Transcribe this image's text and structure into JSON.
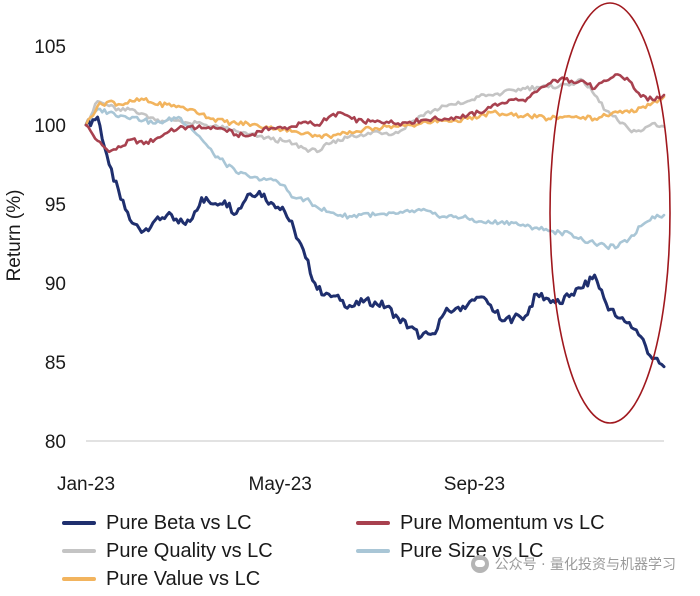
{
  "chart_data": {
    "type": "line",
    "title": "",
    "xlabel": "",
    "ylabel": "Return (%)",
    "ylim": [
      80,
      105
    ],
    "yticks": [
      80,
      85,
      90,
      95,
      100,
      105
    ],
    "x_range": [
      0,
      250
    ],
    "xticks": [
      {
        "label": "Jan-23",
        "x": 0
      },
      {
        "label": "May-23",
        "x": 84
      },
      {
        "label": "Sep-23",
        "x": 168
      }
    ],
    "x": [
      0,
      5,
      10,
      15,
      20,
      25,
      30,
      35,
      40,
      45,
      50,
      55,
      60,
      65,
      70,
      75,
      80,
      85,
      90,
      95,
      100,
      105,
      110,
      115,
      120,
      125,
      130,
      135,
      140,
      145,
      150,
      155,
      160,
      165,
      170,
      175,
      180,
      185,
      190,
      195,
      200,
      205,
      210,
      215,
      220,
      225,
      230,
      235,
      240,
      245,
      250
    ],
    "series": [
      {
        "name": "Pure Beta vs LC",
        "color": "#1f2f6e",
        "values": [
          100,
          100.5,
          97.5,
          95.3,
          93.8,
          93.3,
          94,
          94.3,
          93.8,
          93.9,
          95.4,
          95,
          95.2,
          94.4,
          95.6,
          95.8,
          95.1,
          94.8,
          93.4,
          91.6,
          89.6,
          89.3,
          88.9,
          88.5,
          88.8,
          88.8,
          88.5,
          87.8,
          87.2,
          86.6,
          86.8,
          88.1,
          88.4,
          88.6,
          89.1,
          88.6,
          87.6,
          87.8,
          87.9,
          89.3,
          89,
          88.7,
          89.3,
          89.7,
          90.5,
          88.7,
          87.8,
          87.5,
          86.6,
          85.2,
          84.7
        ]
      },
      {
        "name": "Pure Momentum vs LC",
        "color": "#a8414f",
        "values": [
          100,
          99,
          98.3,
          98.6,
          99.1,
          98.8,
          99.1,
          99.5,
          99.8,
          99.9,
          99.8,
          99.9,
          99.7,
          99.4,
          99.3,
          99.6,
          99.8,
          99.8,
          99.9,
          100.2,
          100,
          100.5,
          100.8,
          100.4,
          100.2,
          100.2,
          100.2,
          100.1,
          100.2,
          100.3,
          100.4,
          100.4,
          100.5,
          100.6,
          100.8,
          101.1,
          101.4,
          101.6,
          101.5,
          102.1,
          102.6,
          102.9,
          102.8,
          102.8,
          102.3,
          102.8,
          103.2,
          102.8,
          101.8,
          101.6,
          101.9
        ]
      },
      {
        "name": "Pure Quality vs LC",
        "color": "#c4c4c4",
        "values": [
          100,
          101.5,
          101.2,
          100.9,
          101,
          100.7,
          100.3,
          100.3,
          100.3,
          100.1,
          100.1,
          99.9,
          99.8,
          99.6,
          99.4,
          99.3,
          99.1,
          99,
          98.8,
          98.5,
          98.3,
          98.8,
          99,
          99.4,
          99.3,
          99.6,
          99.5,
          99.5,
          100.1,
          100.6,
          100.9,
          101.2,
          101.3,
          101.5,
          101.8,
          101.9,
          102,
          102.2,
          102.3,
          102.4,
          102.4,
          102.5,
          102.6,
          102.8,
          101.9,
          100.9,
          100.3,
          99.7,
          99.6,
          100.1,
          99.9
        ]
      },
      {
        "name": "Pure Size vs LC",
        "color": "#a9c6d6",
        "values": [
          100,
          101,
          100.8,
          100.6,
          100.5,
          100.3,
          100.1,
          100.3,
          100.5,
          99.9,
          99.1,
          98.2,
          97.6,
          97,
          96.8,
          96.5,
          96.6,
          96.2,
          95.4,
          95.3,
          94.8,
          94.5,
          94.3,
          94.2,
          94.4,
          94.3,
          94.3,
          94.4,
          94.5,
          94.6,
          94.4,
          94.2,
          94.2,
          94.1,
          93.9,
          93.8,
          93.9,
          93.8,
          93.6,
          93.5,
          93.3,
          93.2,
          93.1,
          92.7,
          92.5,
          92.3,
          92.3,
          92.8,
          93.6,
          94.2,
          94.3
        ]
      },
      {
        "name": "Pure Value vs LC",
        "color": "#f2b45e",
        "values": [
          100,
          101.2,
          101.5,
          101.3,
          101.5,
          101.6,
          101.3,
          101.3,
          101.2,
          101,
          100.7,
          100.4,
          100.2,
          100.1,
          100.1,
          99.9,
          99.9,
          99.7,
          99.6,
          99.5,
          99.3,
          99.3,
          99.4,
          99.5,
          99.7,
          99.8,
          99.9,
          99.9,
          100,
          100.1,
          100.2,
          100.3,
          100.3,
          100.4,
          100.5,
          100.8,
          100.7,
          100.6,
          100.6,
          100.5,
          100.4,
          100.5,
          100.5,
          100.5,
          100.4,
          100.6,
          100.8,
          100.8,
          101.1,
          101.4,
          101.8
        ]
      }
    ],
    "annotation": "red ellipse highlighting the most recent period",
    "legend_position": "bottom"
  },
  "colors": {
    "axis": "#d9d9d9",
    "annotation_ellipse": "#a0181e"
  },
  "legend": [
    {
      "label": "Pure Beta vs LC",
      "color": "#1f2f6e"
    },
    {
      "label": "Pure Momentum vs LC",
      "color": "#a8414f"
    },
    {
      "label": "Pure Quality vs LC",
      "color": "#c4c4c4"
    },
    {
      "label": "Pure Size vs LC",
      "color": "#a9c6d6"
    },
    {
      "label": "Pure Value vs LC",
      "color": "#f2b45e"
    }
  ],
  "watermark": {
    "text": "公众号 · 量化投资与机器学习",
    "icon": "wechat-icon"
  }
}
